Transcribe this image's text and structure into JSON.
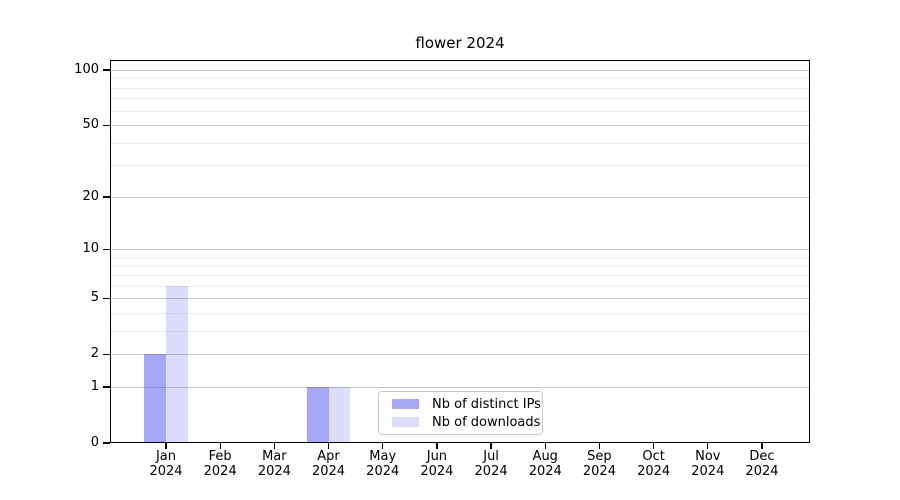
{
  "title": "flower 2024",
  "chart_data": {
    "type": "bar",
    "title": "flower 2024",
    "categories": [
      "Jan",
      "Feb",
      "Mar",
      "Apr",
      "May",
      "Jun",
      "Jul",
      "Aug",
      "Sep",
      "Oct",
      "Nov",
      "Dec"
    ],
    "year_label": "2024",
    "series": [
      {
        "name": "Nb of distinct IPs",
        "color": "rgba(69,69,240,0.47)",
        "values": [
          2,
          0,
          0,
          1,
          0,
          0,
          0,
          0,
          0,
          0,
          0,
          0
        ]
      },
      {
        "name": "Nb of downloads",
        "color": "rgba(69,69,240,0.19)",
        "values": [
          6,
          0,
          0,
          1,
          0,
          0,
          0,
          0,
          0,
          0,
          0,
          0
        ]
      }
    ],
    "xlabel": "",
    "ylabel": "",
    "yscale": "log1p",
    "ylim": [
      0,
      113
    ],
    "y_major_ticks": [
      0,
      1,
      2,
      5,
      10,
      20,
      50,
      100
    ],
    "y_tick_labels": [
      "0",
      "1",
      "2",
      "5",
      "10",
      "20",
      "50",
      "100"
    ],
    "y_minor_gridlines": [
      3,
      4,
      6,
      7,
      8,
      9,
      30,
      40,
      60,
      70,
      80,
      90
    ],
    "grid": true,
    "legend_position": "lower center"
  },
  "colors": {
    "major_grid": "#c6c6c6",
    "minor_grid": "#ececec",
    "spine": "#000000",
    "legend_border": "#cccccc",
    "background": "#ffffff"
  }
}
